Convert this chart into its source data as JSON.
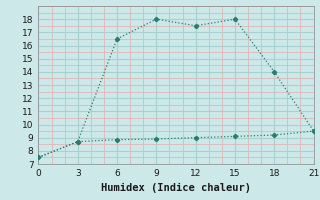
{
  "line1_x": [
    0,
    3,
    6,
    9,
    12,
    15,
    18,
    21
  ],
  "line1_y": [
    7.5,
    8.7,
    16.5,
    18.0,
    17.5,
    18.0,
    14.0,
    9.5
  ],
  "line2_x": [
    0,
    3,
    6,
    9,
    12,
    15,
    18,
    21
  ],
  "line2_y": [
    7.5,
    8.7,
    8.85,
    8.9,
    9.0,
    9.1,
    9.2,
    9.5
  ],
  "line_color": "#2a7d6e",
  "bg_color": "#cce8e8",
  "grid_major_color": "#a8d0d0",
  "grid_minor_color": "#ddb8b8",
  "xlabel": "Humidex (Indice chaleur)",
  "xlim": [
    0,
    21
  ],
  "ylim": [
    7,
    19
  ],
  "xticks": [
    0,
    3,
    6,
    9,
    12,
    15,
    18,
    21
  ],
  "yticks": [
    7,
    8,
    9,
    10,
    11,
    12,
    13,
    14,
    15,
    16,
    17,
    18
  ],
  "xlabel_fontsize": 7.5,
  "tick_fontsize": 6.5
}
